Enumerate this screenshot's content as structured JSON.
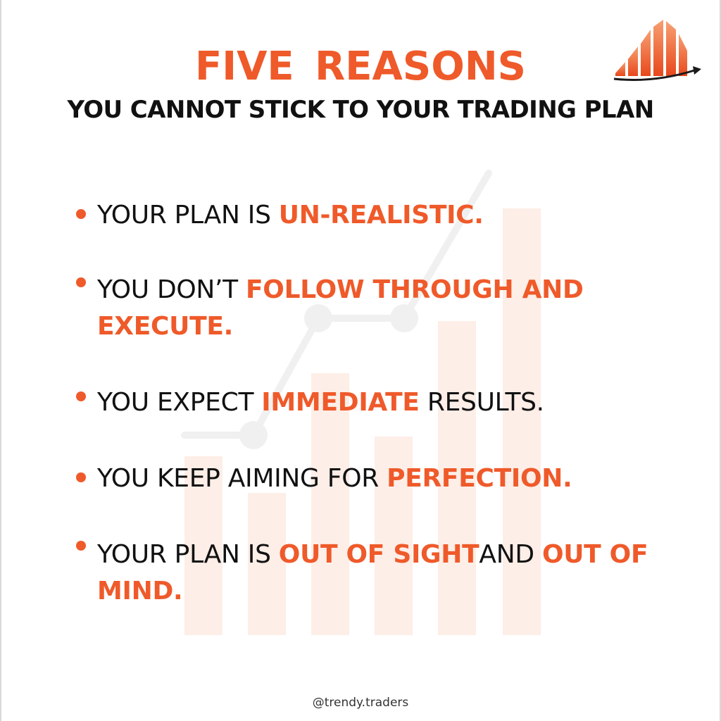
{
  "header": {
    "title": "FIVE  REASONS",
    "subtitle": "YOU CANNOT STICK TO YOUR TRADING PLAN"
  },
  "reasons": [
    {
      "parts": [
        {
          "text": "YOUR PLAN IS ",
          "highlight": false
        },
        {
          "text": "UN-REALISTIC.",
          "highlight": true
        }
      ]
    },
    {
      "parts": [
        {
          "text": "YOU DON’T ",
          "highlight": false
        },
        {
          "text": "FOLLOW THROUGH AND EXECUTE.",
          "highlight": true
        }
      ]
    },
    {
      "parts": [
        {
          "text": "YOU EXPECT ",
          "highlight": false
        },
        {
          "text": "IMMEDIATE",
          "highlight": true
        },
        {
          "text": " RESULTS.",
          "highlight": false
        }
      ]
    },
    {
      "parts": [
        {
          "text": "YOU KEEP AIMING FOR ",
          "highlight": false
        },
        {
          "text": "PERFECTION.",
          "highlight": true
        }
      ]
    },
    {
      "parts": [
        {
          "text": "YOUR PLAN IS ",
          "highlight": false
        },
        {
          "text": "OUT OF SIGHT",
          "highlight": true
        },
        {
          "text": "AND ",
          "highlight": false
        },
        {
          "text": "OUT OF MIND.",
          "highlight": true
        }
      ]
    }
  ],
  "footer": {
    "handle": "@trendy.traders"
  },
  "colors": {
    "accent": "#ef5a2a",
    "text": "#111111",
    "background": "#ffffff",
    "watermark_bar": "#fdeee7",
    "watermark_line": "#f0f0f0"
  },
  "icons": {
    "logo": "rising-bars-arrow-logo",
    "bullet": "orange-dot-bullet",
    "watermark": "background-bar-chart-watermark"
  }
}
